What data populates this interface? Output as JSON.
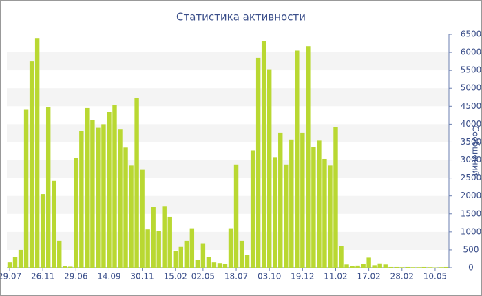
{
  "chart_data": {
    "type": "bar",
    "title": "Статистика активности",
    "y_label": "Сообщений",
    "categories": [
      "29.07",
      null,
      null,
      null,
      null,
      null,
      "26.11",
      null,
      null,
      null,
      null,
      null,
      "29.06",
      null,
      null,
      null,
      null,
      null,
      "14.09",
      null,
      null,
      null,
      null,
      null,
      "30.11",
      null,
      null,
      null,
      null,
      null,
      "15.02",
      null,
      null,
      null,
      null,
      "02.05",
      null,
      null,
      null,
      null,
      null,
      "18.07",
      null,
      null,
      null,
      null,
      null,
      "03.10",
      null,
      null,
      null,
      null,
      null,
      "19.12",
      null,
      null,
      null,
      null,
      null,
      "11.02",
      null,
      null,
      null,
      null,
      null,
      "17.02",
      null,
      null,
      null,
      null,
      null,
      "28.02",
      null,
      null,
      null,
      null,
      null,
      "10.05",
      null,
      null
    ],
    "values": [
      150,
      300,
      500,
      4400,
      5750,
      6400,
      2050,
      4480,
      2420,
      750,
      50,
      30,
      3050,
      3800,
      4450,
      4120,
      3900,
      4000,
      4350,
      4530,
      3850,
      3350,
      2850,
      4730,
      2730,
      1070,
      1700,
      1020,
      1720,
      1420,
      480,
      580,
      750,
      1100,
      230,
      680,
      300,
      150,
      130,
      110,
      1100,
      2880,
      750,
      360,
      3270,
      5850,
      6320,
      5530,
      3080,
      3760,
      2880,
      3570,
      6050,
      3760,
      6170,
      3370,
      3540,
      3030,
      2850,
      3930,
      600,
      90,
      50,
      60,
      100,
      280,
      70,
      120,
      90,
      20,
      20,
      15,
      20,
      15,
      15,
      20,
      15,
      10,
      15,
      20
    ],
    "color": "#b9d832",
    "ylim": [
      0,
      6500
    ],
    "yticks": [
      0,
      500,
      1000,
      1500,
      2000,
      2500,
      3000,
      3500,
      4000,
      4500,
      5000,
      5500,
      6000,
      6500
    ],
    "grid": "bands",
    "y_axis_side": "right"
  }
}
